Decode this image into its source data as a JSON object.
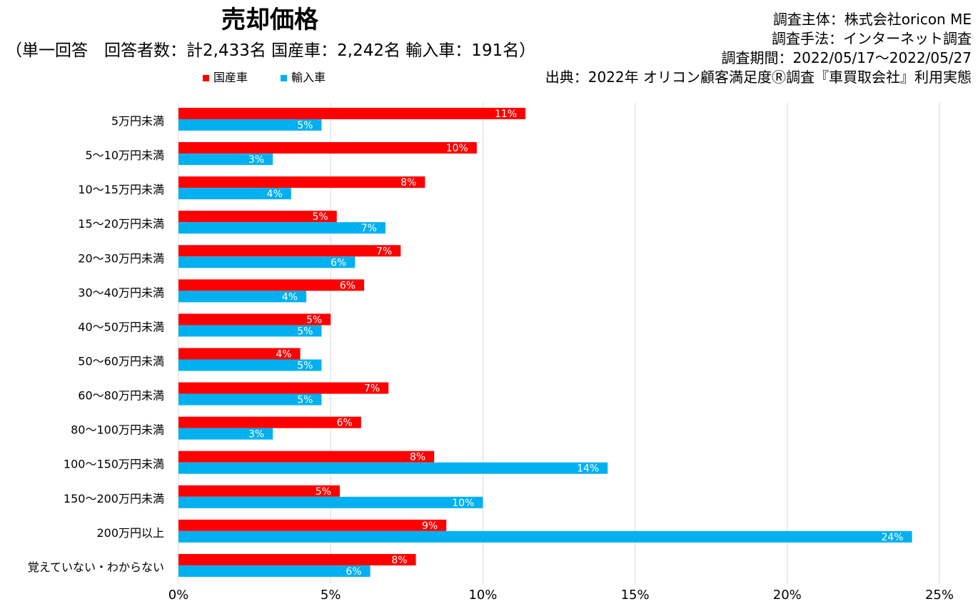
{
  "chart_data": {
    "type": "bar",
    "orientation": "horizontal",
    "title": "売却価格",
    "subtitle": "（単一回答　回答者数：計2,433名 国産車：2,242名 輸入車：191名）",
    "categories": [
      "5万円未満",
      "5～10万円未満",
      "10～15万円未満",
      "15～20万円未満",
      "20～30万円未満",
      "30～40万円未満",
      "40～50万円未満",
      "50～60万円未満",
      "60～80万円未満",
      "80～100万円未満",
      "100～150万円未満",
      "150～200万円未満",
      "200万円以上",
      "覚えていない・わからない"
    ],
    "series": [
      {
        "name": "国産車",
        "color": "#FF0000",
        "values": [
          11.4,
          9.8,
          8.1,
          5.2,
          7.3,
          6.1,
          5.0,
          4.0,
          6.9,
          6.0,
          8.4,
          5.3,
          8.8,
          7.8
        ],
        "labels": [
          "11%",
          "10%",
          "8%",
          "5%",
          "7%",
          "6%",
          "5%",
          "4%",
          "7%",
          "6%",
          "8%",
          "5%",
          "9%",
          "8%"
        ]
      },
      {
        "name": "輸入車",
        "color": "#00B0F0",
        "values": [
          4.7,
          3.1,
          3.7,
          6.8,
          5.8,
          4.2,
          4.7,
          4.7,
          4.7,
          3.1,
          14.1,
          10.0,
          24.1,
          6.3
        ],
        "labels": [
          "5%",
          "3%",
          "4%",
          "7%",
          "6%",
          "4%",
          "5%",
          "5%",
          "5%",
          "3%",
          "14%",
          "10%",
          "24%",
          "6%"
        ]
      }
    ],
    "xlim": [
      0,
      25
    ],
    "xticks": [
      0,
      5,
      10,
      15,
      20,
      25
    ],
    "xtick_labels": [
      "0%",
      "5%",
      "10%",
      "15%",
      "20%",
      "25%"
    ],
    "grid": true,
    "legend_position": "top-left"
  },
  "meta": {
    "lines": [
      "調査主体：株式会社oricon ME",
      "調査手法：インターネット調査",
      "調査期間：2022/05/17～2022/05/27",
      "出典：2022年 オリコン顧客満足度Ⓡ調査『車買取会社』利用実態"
    ]
  }
}
